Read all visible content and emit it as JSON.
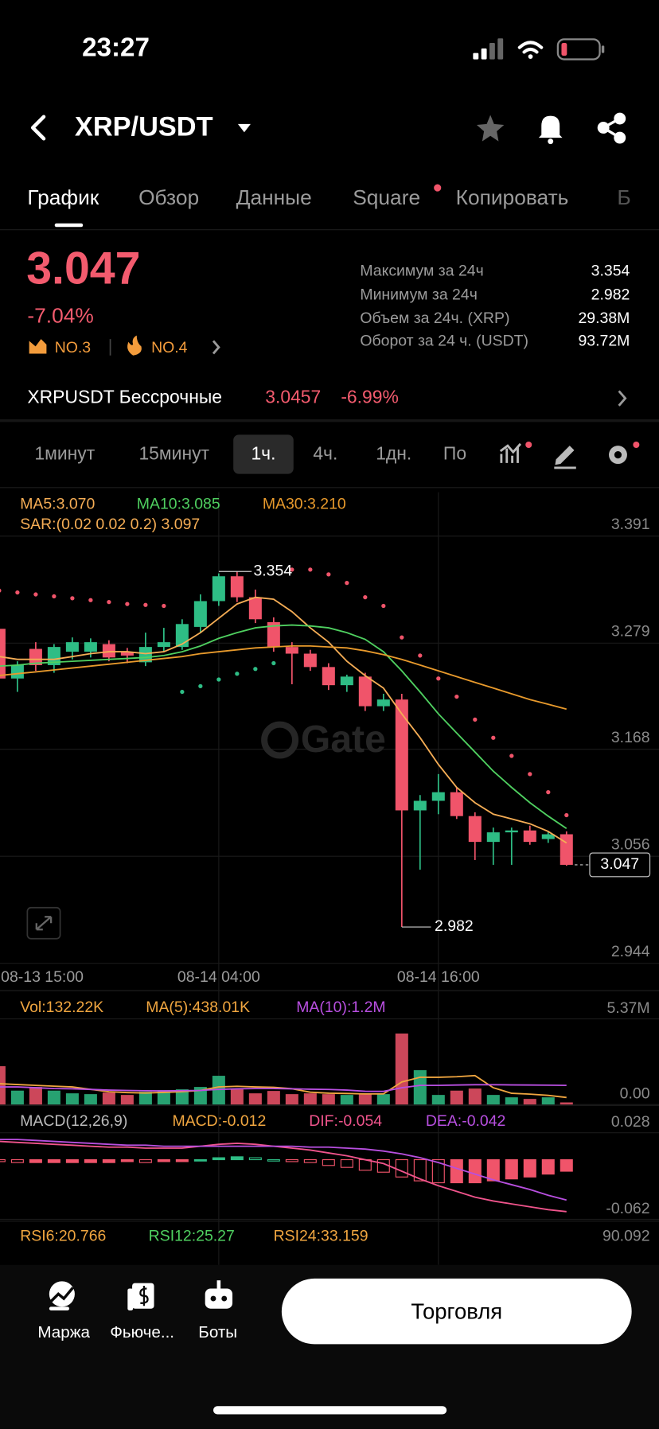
{
  "status_bar": {
    "time": "23:27"
  },
  "header": {
    "title": "XRP/USDT"
  },
  "tabs": [
    "График",
    "Обзор",
    "Данные",
    "Square",
    "Копировать",
    "Б"
  ],
  "ticker": {
    "price": "3.047",
    "change": "-7.04%",
    "rank_gainers": "NO.3",
    "rank_hot": "NO.4"
  },
  "stats": [
    {
      "label": "Максимум за 24ч",
      "value": "3.354"
    },
    {
      "label": "Минимум за 24ч",
      "value": "2.982"
    },
    {
      "label": "Объем за 24ч. (XRP)",
      "value": "29.38M"
    },
    {
      "label": "Оборот за 24 ч. (USDT)",
      "value": "93.72M"
    }
  ],
  "perpetual": {
    "name": "XRPUSDT Бессрочные",
    "price": "3.0457",
    "change": "-6.99%"
  },
  "intervals": [
    "1минут",
    "15минут",
    "1ч.",
    "4ч.",
    "1дн.",
    "По"
  ],
  "chart_data": [
    {
      "type": "candlestick",
      "watermark": "Gate",
      "x_start_label": "08-13 15:00",
      "categories": [
        null,
        null,
        null,
        null,
        null,
        null,
        null,
        null,
        null,
        null,
        null,
        null,
        "08-14 04:00",
        null,
        null,
        null,
        null,
        null,
        null,
        null,
        null,
        null,
        null,
        null,
        "08-14 16:00",
        null,
        null,
        null,
        null,
        null,
        null,
        null
      ],
      "open": [
        3.294,
        3.242,
        3.273,
        3.256,
        3.27,
        3.27,
        3.278,
        3.27,
        3.259,
        3.275,
        3.275,
        3.296,
        3.323,
        3.349,
        3.327,
        3.301,
        3.275,
        3.268,
        3.254,
        3.235,
        3.244,
        3.213,
        3.22,
        3.104,
        3.114,
        3.123,
        3.098,
        3.071,
        3.081,
        3.083,
        3.074,
        3.079
      ],
      "high": [
        3.3,
        3.26,
        3.28,
        3.278,
        3.285,
        3.284,
        3.282,
        3.274,
        3.29,
        3.295,
        3.304,
        3.33,
        3.352,
        3.354,
        3.335,
        3.306,
        3.28,
        3.272,
        3.258,
        3.246,
        3.248,
        3.226,
        3.226,
        3.12,
        3.142,
        3.128,
        3.102,
        3.086,
        3.086,
        3.088,
        3.082,
        3.082
      ],
      "low": [
        3.235,
        3.228,
        3.25,
        3.248,
        3.262,
        3.264,
        3.26,
        3.258,
        3.255,
        3.27,
        3.272,
        3.29,
        3.318,
        3.322,
        3.3,
        3.27,
        3.236,
        3.25,
        3.23,
        3.228,
        3.208,
        3.208,
        2.982,
        3.042,
        3.1,
        3.095,
        3.052,
        3.047,
        3.047,
        3.068,
        3.07,
        3.046
      ],
      "close": [
        3.242,
        3.256,
        3.256,
        3.275,
        3.28,
        3.28,
        3.264,
        3.266,
        3.275,
        3.28,
        3.299,
        3.323,
        3.349,
        3.327,
        3.304,
        3.275,
        3.268,
        3.254,
        3.235,
        3.244,
        3.213,
        3.22,
        3.104,
        3.114,
        3.123,
        3.098,
        3.071,
        3.081,
        3.083,
        3.071,
        3.079,
        3.047
      ],
      "up_color": "#2ebd85",
      "down_color": "#f0546a",
      "max_label": "3.354",
      "min_label": "2.982",
      "ylim": [
        2.944,
        3.437
      ],
      "yticks": [
        3.391,
        3.279,
        3.168,
        3.056,
        2.944
      ],
      "grid": true,
      "series": [
        {
          "name": "MA5:3.070",
          "color": "#f5ad55",
          "values": [
            3.265,
            3.262,
            3.262,
            3.262,
            3.265,
            3.268,
            3.27,
            3.27,
            3.268,
            3.27,
            3.278,
            3.29,
            3.305,
            3.32,
            3.327,
            3.325,
            3.312,
            3.295,
            3.28,
            3.26,
            3.245,
            3.232,
            3.205,
            3.18,
            3.152,
            3.128,
            3.112,
            3.1,
            3.095,
            3.09,
            3.082,
            3.07
          ]
        },
        {
          "name": "MA10:3.085",
          "color": "#4fd060",
          "values": [
            3.255,
            3.256,
            3.258,
            3.259,
            3.26,
            3.261,
            3.262,
            3.263,
            3.264,
            3.266,
            3.27,
            3.276,
            3.284,
            3.29,
            3.295,
            3.297,
            3.298,
            3.297,
            3.295,
            3.29,
            3.283,
            3.27,
            3.25,
            3.228,
            3.205,
            3.185,
            3.165,
            3.145,
            3.128,
            3.112,
            3.098,
            3.085
          ]
        },
        {
          "name": "MA30:3.210",
          "color": "#e89a2c",
          "values": [
            3.245,
            3.247,
            3.249,
            3.251,
            3.253,
            3.255,
            3.257,
            3.259,
            3.261,
            3.263,
            3.265,
            3.268,
            3.27,
            3.272,
            3.274,
            3.275,
            3.276,
            3.276,
            3.275,
            3.274,
            3.271,
            3.267,
            3.262,
            3.256,
            3.25,
            3.244,
            3.238,
            3.232,
            3.226,
            3.22,
            3.215,
            3.21
          ]
        },
        {
          "name": "SAR:(0.02 0.02 0.2) 3.097",
          "type": "dots",
          "color": "#f5ad55",
          "colors": [
            "#f0546a",
            "#f0546a",
            "#f0546a",
            "#f0546a",
            "#f0546a",
            "#f0546a",
            "#f0546a",
            "#f0546a",
            "#f0546a",
            "#f0546a",
            "#2ebd85",
            "#2ebd85",
            "#2ebd85",
            "#2ebd85",
            "#2ebd85",
            "#2ebd85",
            "#f0546a",
            "#f0546a",
            "#f0546a",
            "#f0546a",
            "#f0546a",
            "#f0546a",
            "#f0546a",
            "#f0546a",
            "#f0546a",
            "#f0546a",
            "#f0546a",
            "#f0546a",
            "#f0546a",
            "#f0546a",
            "#f0546a",
            "#f0546a"
          ],
          "values": [
            3.334,
            3.332,
            3.33,
            3.328,
            3.326,
            3.324,
            3.322,
            3.32,
            3.319,
            3.318,
            3.228,
            3.234,
            3.241,
            3.247,
            3.252,
            3.258,
            3.356,
            3.356,
            3.351,
            3.342,
            3.327,
            3.318,
            3.285,
            3.266,
            3.242,
            3.223,
            3.199,
            3.18,
            3.161,
            3.142,
            3.123,
            3.099
          ]
        }
      ]
    },
    {
      "type": "bar",
      "ylim": [
        0,
        5370000
      ],
      "yticks": [
        {
          "value": 5370000,
          "label": "5.37M"
        },
        {
          "value": 0,
          "label": "0.00"
        }
      ],
      "series": [
        {
          "name": "Vol:132.22K",
          "color": "#f0a640",
          "values": [
            2400000,
            870000,
            1100000,
            870000,
            700000,
            650000,
            750000,
            600000,
            800000,
            900000,
            950000,
            1100000,
            1800000,
            950000,
            700000,
            850000,
            650000,
            700000,
            650000,
            600000,
            700000,
            650000,
            4450000,
            2150000,
            600000,
            870000,
            1000000,
            600000,
            450000,
            350000,
            450000,
            132220
          ]
        },
        {
          "name": "MA(5):438.01K",
          "type": "line",
          "color": "#f0a640",
          "values": [
            1300000,
            1250000,
            1200000,
            1150000,
            1100000,
            950000,
            800000,
            750000,
            720000,
            760000,
            800000,
            880000,
            1100000,
            1140000,
            1100000,
            1080000,
            990000,
            770000,
            710000,
            690000,
            660000,
            660000,
            1410000,
            1710000,
            1710000,
            1740000,
            1810000,
            1050000,
            700000,
            650000,
            570000,
            438010
          ]
        },
        {
          "name": "MA(10):1.2M",
          "type": "line",
          "color": "#b84fe0",
          "values": [
            1100000,
            1100000,
            1050000,
            1000000,
            980000,
            950000,
            900000,
            880000,
            860000,
            850000,
            870000,
            880000,
            950000,
            980000,
            1000000,
            1000000,
            980000,
            960000,
            940000,
            900000,
            830000,
            820000,
            1050000,
            1200000,
            1200000,
            1220000,
            1240000,
            1240000,
            1230000,
            1220000,
            1210000,
            1200000
          ]
        }
      ]
    },
    {
      "type": "macd",
      "title": "MACD(12,26,9)",
      "ylim": [
        -0.062,
        0.028
      ],
      "yticks": [
        0.028,
        -0.062
      ],
      "up_color": "#2ebd85",
      "down_color": "#f0546a",
      "series": [
        {
          "name": "MACD:-0.012",
          "type": "bar",
          "color": "#f0a640",
          "values": [
            -0.002,
            -0.003,
            -0.003,
            -0.003,
            -0.003,
            -0.003,
            -0.003,
            -0.002,
            -0.003,
            -0.002,
            -0.002,
            0,
            0.002,
            0.003,
            0.002,
            0,
            -0.002,
            -0.003,
            -0.006,
            -0.008,
            -0.011,
            -0.013,
            -0.018,
            -0.022,
            -0.024,
            -0.024,
            -0.024,
            -0.022,
            -0.02,
            -0.018,
            -0.015,
            -0.012
          ]
        },
        {
          "name": "DIF:-0.054",
          "type": "line",
          "color": "#f0548c",
          "values": [
            0.019,
            0.018,
            0.017,
            0.016,
            0.015,
            0.014,
            0.013,
            0.013,
            0.012,
            0.012,
            0.012,
            0.014,
            0.016,
            0.017,
            0.016,
            0.014,
            0.012,
            0.01,
            0.007,
            0.004,
            0.0,
            -0.004,
            -0.012,
            -0.02,
            -0.027,
            -0.033,
            -0.039,
            -0.043,
            -0.046,
            -0.049,
            -0.052,
            -0.054
          ]
        },
        {
          "name": "DEA:-0.042",
          "type": "line",
          "color": "#b84fe0",
          "values": [
            0.021,
            0.021,
            0.02,
            0.019,
            0.018,
            0.017,
            0.016,
            0.015,
            0.015,
            0.014,
            0.014,
            0.014,
            0.014,
            0.014,
            0.014,
            0.014,
            0.014,
            0.013,
            0.013,
            0.012,
            0.011,
            0.009,
            0.006,
            0.002,
            -0.003,
            -0.009,
            -0.015,
            -0.021,
            -0.026,
            -0.031,
            -0.037,
            -0.042
          ]
        }
      ]
    }
  ],
  "rsi": {
    "labels": [
      "RSI6:20.766",
      "RSI12:25.27",
      "RSI24:33.159"
    ],
    "colors": [
      "#f0a640",
      "#4fd060",
      "#f0a640"
    ],
    "top_label": "90.092"
  },
  "bottom_nav": {
    "items": [
      "Маржа",
      "Фьюче...",
      "Боты"
    ],
    "trade_button": "Торговля"
  }
}
